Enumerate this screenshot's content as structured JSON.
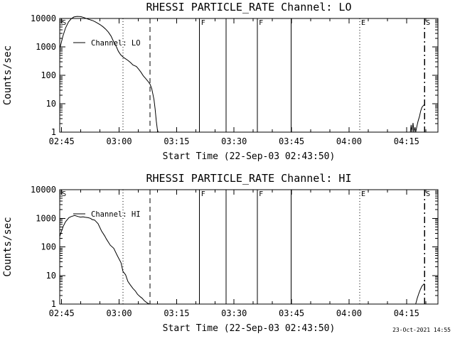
{
  "page": {
    "background": "#ffffff",
    "foreground": "#000000"
  },
  "timestamp": "23-Oct-2021 14:55",
  "chart_data": [
    {
      "type": "line",
      "title": "RHESSI PARTICLE_RATE Channel: LO",
      "xlabel": "Start Time (22-Sep-03 02:43:50)",
      "ylabel": "Counts/sec",
      "legend": {
        "label": "Channel: LO",
        "position": "upper-left-inside"
      },
      "yscale": "log",
      "ylim": [
        1,
        10000
      ],
      "y_ticks": [
        {
          "v": 1,
          "label": "1"
        },
        {
          "v": 10,
          "label": "10"
        },
        {
          "v": 100,
          "label": "100"
        },
        {
          "v": 1000,
          "label": "1000"
        },
        {
          "v": 10000,
          "label": "10000"
        }
      ],
      "xlim_minutes_after_0245": [
        -0.5,
        98.2
      ],
      "x_ticks": [
        {
          "t": 0,
          "label": "02:45"
        },
        {
          "t": 15,
          "label": "03:00"
        },
        {
          "t": 30,
          "label": "03:15"
        },
        {
          "t": 45,
          "label": "03:30"
        },
        {
          "t": 60,
          "label": "03:45"
        },
        {
          "t": 75,
          "label": "04:00"
        },
        {
          "t": 90,
          "label": "04:15"
        }
      ],
      "x_minor_step": 5,
      "grid": false,
      "events": [
        {
          "t": -0.3,
          "style": "none",
          "label": "S"
        },
        {
          "t": 16.0,
          "style": "dotted",
          "label": ""
        },
        {
          "t": 23.1,
          "style": "dashed",
          "label": ""
        },
        {
          "t": 36.0,
          "style": "solid",
          "label": "F"
        },
        {
          "t": 42.9,
          "style": "solid",
          "label": ""
        },
        {
          "t": 51.1,
          "style": "solid",
          "label": "F"
        },
        {
          "t": 59.9,
          "style": "solid",
          "label": ""
        },
        {
          "t": 77.8,
          "style": "dotted",
          "label": "E"
        },
        {
          "t": 94.7,
          "style": "dashdot",
          "label": "S"
        }
      ],
      "series": [
        {
          "name": "Channel: LO",
          "points": [
            [
              -0.4,
              950
            ],
            [
              0.3,
              2300
            ],
            [
              1.0,
              4600
            ],
            [
              1.8,
              7600
            ],
            [
              2.5,
              9800
            ],
            [
              3.2,
              11300
            ],
            [
              4.0,
              11800
            ],
            [
              5.0,
              11600
            ],
            [
              5.8,
              10800
            ],
            [
              6.6,
              9800
            ],
            [
              7.4,
              9000
            ],
            [
              8.2,
              8300
            ],
            [
              8.8,
              7600
            ],
            [
              9.4,
              6800
            ],
            [
              10.1,
              6000
            ],
            [
              10.8,
              5100
            ],
            [
              11.5,
              4200
            ],
            [
              12.2,
              3300
            ],
            [
              12.9,
              2400
            ],
            [
              13.6,
              1500
            ],
            [
              14.3,
              1000
            ],
            [
              14.8,
              700
            ],
            [
              15.4,
              530
            ],
            [
              16.1,
              430
            ],
            [
              16.7,
              380
            ],
            [
              17.3,
              335
            ],
            [
              18.0,
              280
            ],
            [
              18.6,
              230
            ],
            [
              19.5,
              205
            ],
            [
              20.1,
              165
            ],
            [
              20.7,
              128
            ],
            [
              21.3,
              96
            ],
            [
              21.9,
              78
            ],
            [
              22.6,
              60
            ],
            [
              23.1,
              48
            ],
            [
              23.5,
              34
            ],
            [
              23.8,
              22
            ],
            [
              24.1,
              14
            ],
            [
              24.4,
              6.5
            ],
            [
              24.7,
              2.5
            ],
            [
              25.0,
              1.2
            ],
            [
              25.2,
              1.0
            ],
            null,
            [
              91.0,
              1.0
            ],
            [
              91.2,
              1.8
            ],
            [
              91.4,
              1.0
            ],
            [
              91.7,
              2.1
            ],
            [
              91.9,
              1.0
            ],
            [
              92.2,
              1.5
            ],
            [
              92.4,
              1.0
            ],
            [
              92.7,
              1.6
            ],
            [
              93.0,
              2.4
            ],
            [
              93.4,
              3.6
            ],
            [
              93.7,
              5.5
            ],
            [
              94.0,
              7.4
            ],
            [
              94.3,
              8.3
            ],
            [
              94.6,
              9.2
            ]
          ]
        }
      ]
    },
    {
      "type": "line",
      "title": "RHESSI PARTICLE_RATE Channel: HI",
      "xlabel": "Start Time (22-Sep-03 02:43:50)",
      "ylabel": "Counts/sec",
      "legend": {
        "label": "Channel: HI",
        "position": "upper-left-inside"
      },
      "yscale": "log",
      "ylim": [
        1,
        10000
      ],
      "y_ticks": [
        {
          "v": 1,
          "label": "1"
        },
        {
          "v": 10,
          "label": "10"
        },
        {
          "v": 100,
          "label": "100"
        },
        {
          "v": 1000,
          "label": "1000"
        },
        {
          "v": 10000,
          "label": "10000"
        }
      ],
      "xlim_minutes_after_0245": [
        -0.5,
        98.2
      ],
      "x_ticks": [
        {
          "t": 0,
          "label": "02:45"
        },
        {
          "t": 15,
          "label": "03:00"
        },
        {
          "t": 30,
          "label": "03:15"
        },
        {
          "t": 45,
          "label": "03:30"
        },
        {
          "t": 60,
          "label": "03:45"
        },
        {
          "t": 75,
          "label": "04:00"
        },
        {
          "t": 90,
          "label": "04:15"
        }
      ],
      "x_minor_step": 5,
      "grid": false,
      "events": [
        {
          "t": -0.3,
          "style": "none",
          "label": "S"
        },
        {
          "t": 16.0,
          "style": "dotted",
          "label": ""
        },
        {
          "t": 23.1,
          "style": "dashed",
          "label": ""
        },
        {
          "t": 36.0,
          "style": "solid",
          "label": "F"
        },
        {
          "t": 42.9,
          "style": "solid",
          "label": ""
        },
        {
          "t": 51.1,
          "style": "solid",
          "label": "F"
        },
        {
          "t": 59.9,
          "style": "solid",
          "label": ""
        },
        {
          "t": 77.8,
          "style": "dotted",
          "label": "E"
        },
        {
          "t": 94.7,
          "style": "dashdot",
          "label": "S"
        }
      ],
      "series": [
        {
          "name": "Channel: HI",
          "points": [
            [
              -0.5,
              230
            ],
            [
              0.4,
              520
            ],
            [
              1.0,
              750
            ],
            [
              1.9,
              1050
            ],
            [
              2.5,
              1150
            ],
            [
              3.4,
              1250
            ],
            [
              4.3,
              1150
            ],
            [
              4.9,
              1100
            ],
            [
              5.6,
              1120
            ],
            [
              6.2,
              1080
            ],
            [
              6.9,
              1050
            ],
            [
              7.5,
              1000
            ],
            [
              8.0,
              900
            ],
            [
              8.6,
              870
            ],
            [
              9.5,
              650
            ],
            [
              10.4,
              360
            ],
            [
              11.2,
              245
            ],
            [
              11.7,
              185
            ],
            [
              12.7,
              115
            ],
            [
              13.6,
              89
            ],
            [
              14.5,
              50
            ],
            [
              15.5,
              28
            ],
            [
              16.0,
              14
            ],
            [
              16.7,
              10.5
            ],
            [
              17.0,
              8
            ],
            [
              17.3,
              6.2
            ],
            [
              17.9,
              4.7
            ],
            [
              18.6,
              3.5
            ],
            [
              19.2,
              2.9
            ],
            [
              19.8,
              2.2
            ],
            [
              20.5,
              1.8
            ],
            [
              21.0,
              1.6
            ],
            [
              21.6,
              1.3
            ],
            [
              22.3,
              1.1
            ],
            [
              22.9,
              1.0
            ],
            null,
            [
              92.4,
              1.0
            ],
            [
              92.8,
              1.6
            ],
            [
              93.2,
              2.3
            ],
            [
              93.6,
              3.2
            ],
            [
              94.0,
              4.2
            ],
            [
              94.4,
              4.8
            ],
            [
              94.7,
              5.2
            ]
          ]
        }
      ]
    }
  ]
}
